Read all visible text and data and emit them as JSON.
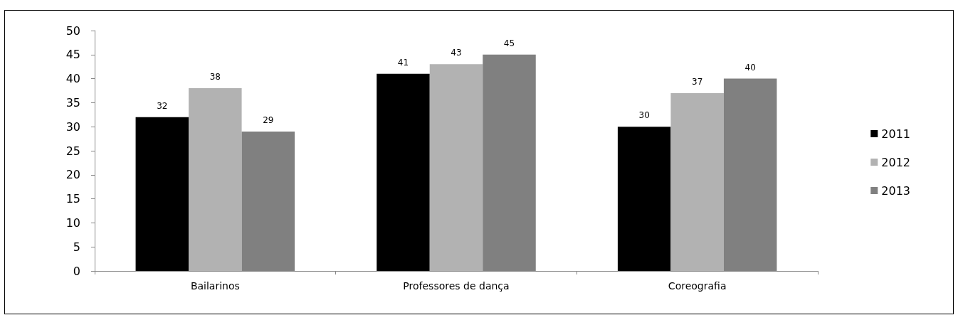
{
  "chart_data": {
    "type": "bar",
    "categories": [
      "Bailarinos",
      "Professores de dança",
      "Coreografia"
    ],
    "series": [
      {
        "name": "2011",
        "color": "#000000",
        "values": [
          32,
          41,
          30
        ]
      },
      {
        "name": "2012",
        "color": "#b2b2b2",
        "values": [
          38,
          43,
          37
        ]
      },
      {
        "name": "2013",
        "color": "#808080",
        "values": [
          29,
          45,
          40
        ]
      }
    ],
    "ylim": [
      0,
      50
    ],
    "yticks": [
      0,
      5,
      10,
      15,
      20,
      25,
      30,
      35,
      40,
      45,
      50
    ],
    "grid": false,
    "legend": "right",
    "data_labels": true
  }
}
